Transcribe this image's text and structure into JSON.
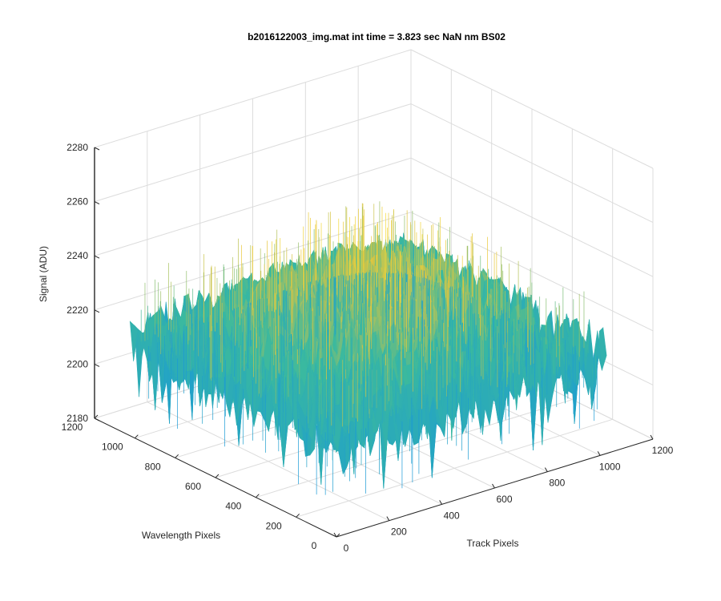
{
  "chart_data": {
    "type": "surface",
    "title": "b2016122003_img.mat int time = 3.823 sec  NaN nm BS02",
    "xlabel": "Track Pixels",
    "ylabel": "Wavelength Pixels",
    "zlabel": "Signal (ADU)",
    "xlim": [
      0,
      1200
    ],
    "ylim": [
      0,
      1200
    ],
    "zlim": [
      2180,
      2280
    ],
    "x_ticks": [
      0,
      200,
      400,
      600,
      800,
      1000,
      1200
    ],
    "y_ticks": [
      0,
      200,
      400,
      600,
      800,
      1000,
      1200
    ],
    "z_ticks": [
      2180,
      2200,
      2220,
      2240,
      2260,
      2280
    ],
    "x_tick_labels": [
      "0",
      "200",
      "400",
      "600",
      "800",
      "1000",
      "1200"
    ],
    "y_tick_labels": [
      "0",
      "200",
      "400",
      "600",
      "800",
      "1000",
      "1200"
    ],
    "z_tick_labels": [
      "2180",
      "2200",
      "2220",
      "2240",
      "2260",
      "2280"
    ],
    "grid": true,
    "colormap": "parula",
    "surface_x_range": [
      0,
      1024
    ],
    "surface_y_range": [
      0,
      1024
    ],
    "mean_signal_edge": 2215,
    "mean_signal_center": 2238,
    "noise_amplitude_adu": 15,
    "colors": {
      "low": "#1a9ad6",
      "mid": "#3ab99f",
      "high": "#e8c63a",
      "top": "#f5dd3a",
      "axis": "#262626",
      "grid": "#dcdcdc"
    }
  }
}
